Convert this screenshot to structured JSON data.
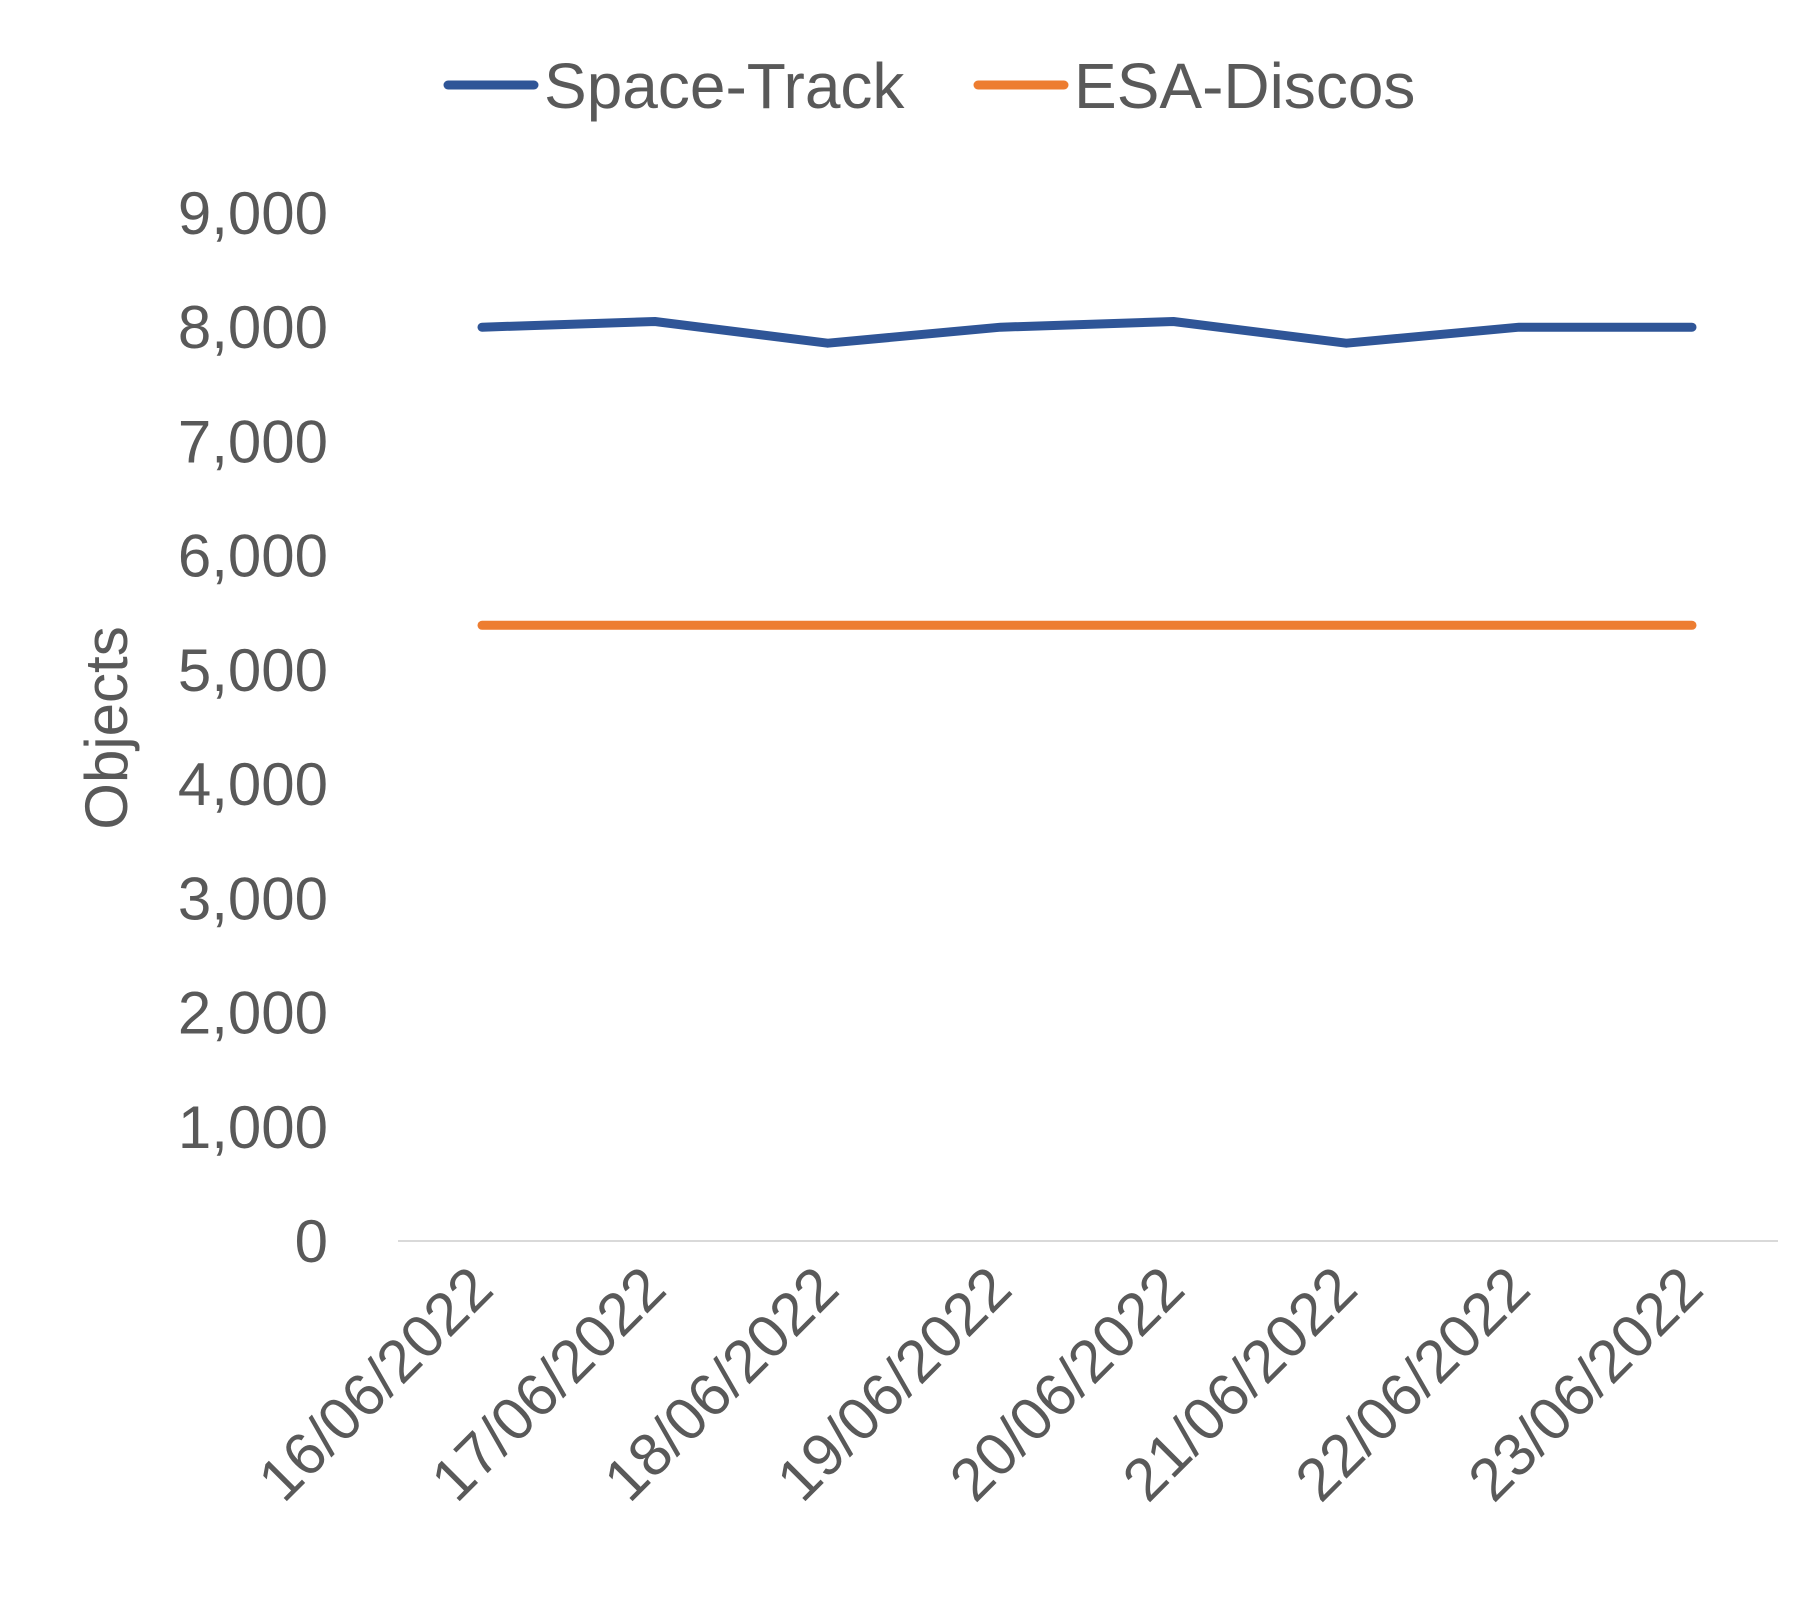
{
  "chart_data": {
    "type": "line",
    "categories": [
      "16/06/2022",
      "17/06/2022",
      "18/06/2022",
      "19/06/2022",
      "20/06/2022",
      "21/06/2022",
      "22/06/2022",
      "23/06/2022"
    ],
    "series": [
      {
        "name": "Space-Track",
        "color": "#2F5597",
        "values": [
          8000,
          8050,
          7860,
          8000,
          8050,
          7860,
          8000,
          8000
        ]
      },
      {
        "name": "ESA-Discos",
        "color": "#ED7D31",
        "values": [
          5390,
          5390,
          5390,
          5390,
          5390,
          5390,
          5390,
          5390
        ]
      }
    ],
    "ylabel": "Objects",
    "xlabel": "",
    "ylim": [
      0,
      9000
    ],
    "yticks": [
      "0",
      "1,000",
      "2,000",
      "3,000",
      "4,000",
      "5,000",
      "6,000",
      "7,000",
      "8,000",
      "9,000"
    ],
    "grid": false,
    "legend_position": "top"
  }
}
